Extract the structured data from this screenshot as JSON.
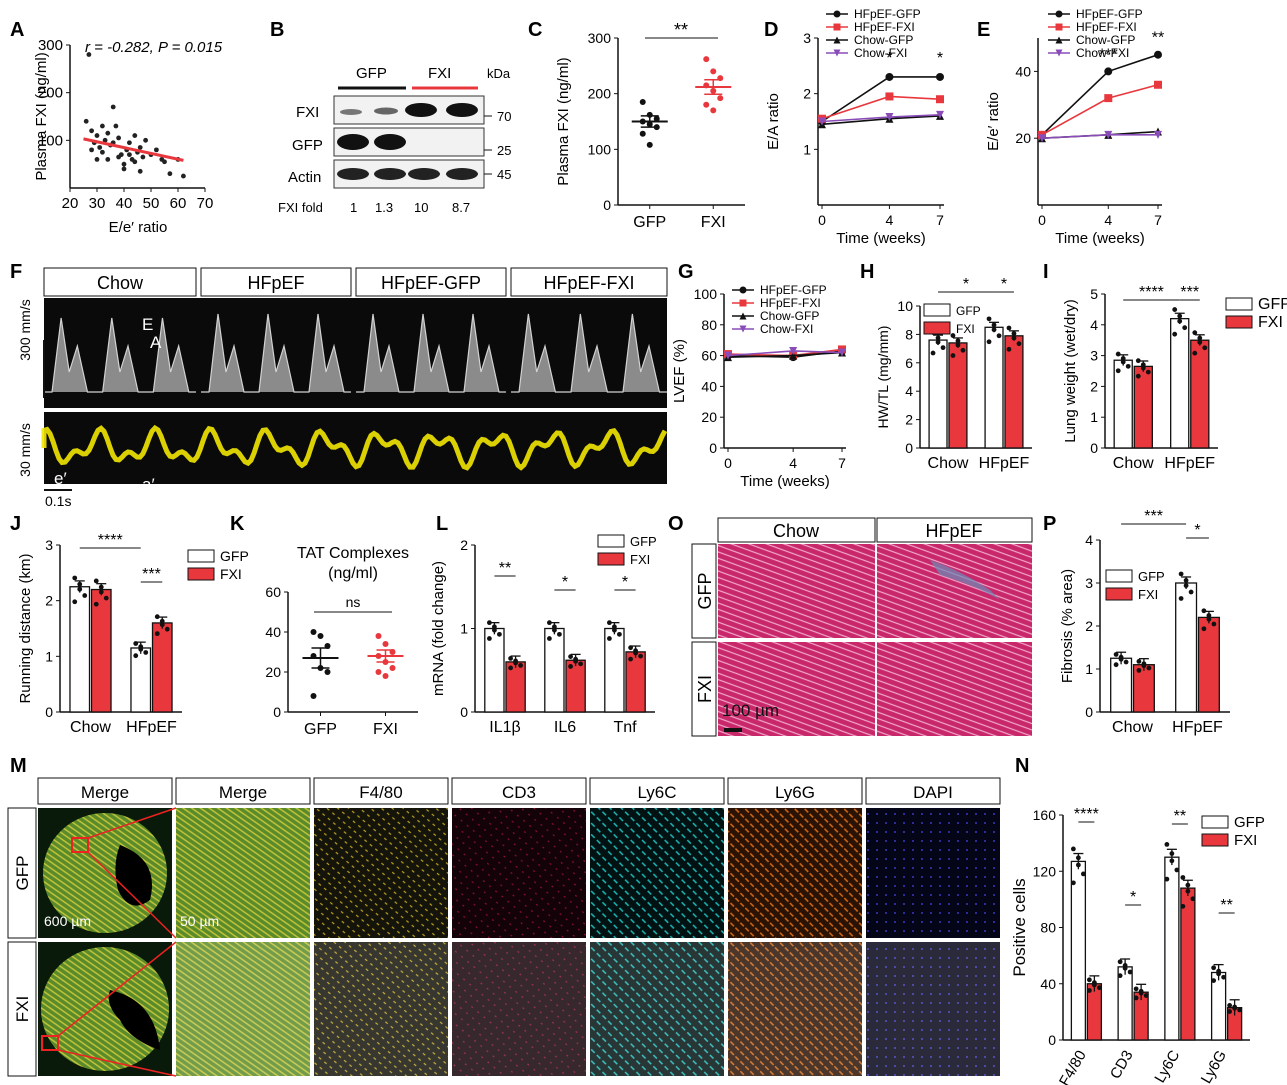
{
  "panels": {
    "A": {
      "letter": "A",
      "stats": "r = -0.282, P = 0.015",
      "xlabel": "E/e′ ratio",
      "ylabel": "Plasma FXI (ng/ml)",
      "xticks": [
        "20",
        "30",
        "40",
        "50",
        "60",
        "70"
      ],
      "yticks": [
        "100",
        "200",
        "300"
      ]
    },
    "B": {
      "letter": "B",
      "groups": [
        "GFP",
        "FXI"
      ],
      "rows": [
        "FXI",
        "GFP",
        "Actin"
      ],
      "kda_label": "kDa",
      "kda": [
        "70",
        "25",
        "45"
      ],
      "fold_label": "FXI fold",
      "fold": [
        "1",
        "1.3",
        "10",
        "8.7"
      ]
    },
    "C": {
      "letter": "C",
      "ylabel": "Plasma FXI (ng/ml)",
      "yticks": [
        "0",
        "100",
        "200",
        "300"
      ],
      "categories": [
        "GFP",
        "FXI"
      ],
      "sig": "**"
    },
    "D": {
      "letter": "D",
      "ylabel": "E/A ratio",
      "xlabel": "Time (weeks)",
      "yticks": [
        "1",
        "2",
        "3"
      ],
      "xticks": [
        "0",
        "4",
        "7"
      ],
      "legend": [
        "HFpEF-GFP",
        "HFpEF-FXI",
        "Chow-GFP",
        "Chow-FXI"
      ],
      "sig": [
        "*",
        "*"
      ]
    },
    "E": {
      "letter": "E",
      "ylabel": "E/e′ ratio",
      "xlabel": "Time (weeks)",
      "yticks": [
        "20",
        "40"
      ],
      "xticks": [
        "0",
        "4",
        "7"
      ],
      "legend": [
        "HFpEF-GFP",
        "HFpEF-FXI",
        "Chow-GFP",
        "Chow-FXI"
      ],
      "sig": [
        "***",
        "**"
      ]
    },
    "F": {
      "letter": "F",
      "conditions": [
        "Chow",
        "HFpEF",
        "HFpEF-GFP",
        "HFpEF-FXI"
      ],
      "scale1": "300 mm/s",
      "scale2": "30 mm/s",
      "time_scale": "0.1s",
      "labels": [
        "E",
        "A",
        "e′",
        "a′"
      ]
    },
    "G": {
      "letter": "G",
      "ylabel": "LVEF (%)",
      "xlabel": "Time (weeks)",
      "yticks": [
        "0",
        "20",
        "40",
        "60",
        "80",
        "100"
      ],
      "xticks": [
        "0",
        "4",
        "7"
      ],
      "legend": [
        "HFpEF-GFP",
        "HFpEF-FXI",
        "Chow-GFP",
        "Chow-FXI"
      ]
    },
    "H": {
      "letter": "H",
      "ylabel": "HW/TL (mg/mm)",
      "yticks": [
        "0",
        "2",
        "4",
        "6",
        "8",
        "10"
      ],
      "categories": [
        "Chow",
        "HFpEF"
      ],
      "legend": [
        "GFP",
        "FXI"
      ],
      "sig": [
        "*",
        "*"
      ]
    },
    "I": {
      "letter": "I",
      "ylabel": "Lung weight (wet/dry)",
      "yticks": [
        "0",
        "1",
        "2",
        "3",
        "4",
        "5"
      ],
      "categories": [
        "Chow",
        "HFpEF"
      ],
      "legend": [
        "GFP",
        "FXI"
      ],
      "sig": [
        "****",
        "***"
      ]
    },
    "J": {
      "letter": "J",
      "ylabel": "Running distance (km)",
      "yticks": [
        "0",
        "1",
        "2",
        "3"
      ],
      "categories": [
        "Chow",
        "HFpEF"
      ],
      "legend": [
        "GFP",
        "FXI"
      ],
      "sig": [
        "****",
        "***"
      ]
    },
    "K": {
      "letter": "K",
      "title": "TAT Complexes",
      "subtitle": "(ng/ml)",
      "yticks": [
        "0",
        "20",
        "40",
        "60"
      ],
      "categories": [
        "GFP",
        "FXI"
      ],
      "sig": "ns"
    },
    "L": {
      "letter": "L",
      "ylabel": "mRNA (fold change)",
      "yticks": [
        "0",
        "1",
        "2"
      ],
      "categories": [
        "IL1β",
        "IL6",
        "Tnf"
      ],
      "legend": [
        "GFP",
        "FXI"
      ],
      "sig": [
        "**",
        "*",
        "*"
      ]
    },
    "O": {
      "letter": "O",
      "columns": [
        "Chow",
        "HFpEF"
      ],
      "rows": [
        "GFP",
        "FXI"
      ],
      "scale": "100 µm"
    },
    "P": {
      "letter": "P",
      "ylabel": "Fibrosis (% area)",
      "yticks": [
        "0",
        "1",
        "2",
        "3",
        "4"
      ],
      "categories": [
        "Chow",
        "HFpEF"
      ],
      "legend": [
        "GFP",
        "FXI"
      ],
      "sig": [
        "***",
        "*"
      ]
    },
    "M": {
      "letter": "M",
      "columns": [
        "Merge",
        "Merge",
        "F4/80",
        "CD3",
        "Ly6C",
        "Ly6G",
        "DAPI"
      ],
      "rows": [
        "GFP",
        "FXI"
      ],
      "scale1": "600 µm",
      "scale2": "50 µm"
    },
    "N": {
      "letter": "N",
      "ylabel": "Positive cells",
      "yticks": [
        "0",
        "40",
        "80",
        "120",
        "160"
      ],
      "categories": [
        "F4/80",
        "CD3",
        "Ly6C",
        "Ly6G"
      ],
      "legend": [
        "GFP",
        "FXI"
      ],
      "sig": [
        "****",
        "*",
        "**",
        "**"
      ]
    }
  },
  "colors": {
    "gfp": "#111111",
    "fxi": "#e8383d",
    "chow_fxi": "#8a4db8",
    "bar_gfp": "#ffffff",
    "bar_fxi": "#e8383d",
    "yellow": "#f2e600"
  },
  "chart_data": [
    {
      "type": "scatter",
      "id": "A",
      "xlabel": "E/e′ ratio",
      "ylabel": "Plasma FXI (ng/ml)",
      "xlim": [
        20,
        70
      ],
      "ylim": [
        0,
        300
      ],
      "points": [
        [
          27,
          280
        ],
        [
          28,
          120
        ],
        [
          29,
          95
        ],
        [
          30,
          110
        ],
        [
          31,
          85
        ],
        [
          32,
          75
        ],
        [
          33,
          100
        ],
        [
          34,
          60
        ],
        [
          35,
          90
        ],
        [
          36,
          170
        ],
        [
          37,
          130
        ],
        [
          38,
          105
        ],
        [
          39,
          70
        ],
        [
          40,
          50
        ],
        [
          41,
          80
        ],
        [
          42,
          95
        ],
        [
          43,
          60
        ],
        [
          44,
          110
        ],
        [
          45,
          75
        ],
        [
          46,
          85
        ],
        [
          47,
          65
        ],
        [
          48,
          100
        ],
        [
          50,
          70
        ],
        [
          52,
          80
        ],
        [
          54,
          60
        ],
        [
          55,
          55
        ],
        [
          57,
          30
        ],
        [
          60,
          60
        ],
        [
          62,
          25
        ],
        [
          26,
          140
        ],
        [
          28,
          80
        ],
        [
          30,
          60
        ],
        [
          32,
          130
        ],
        [
          34,
          115
        ],
        [
          36,
          95
        ],
        [
          38,
          65
        ],
        [
          40,
          40
        ],
        [
          42,
          70
        ],
        [
          44,
          55
        ],
        [
          46,
          35
        ]
      ],
      "fit": [
        [
          25,
          103
        ],
        [
          62,
          58
        ]
      ]
    },
    {
      "type": "scatter",
      "id": "C",
      "categories": [
        "GFP",
        "FXI"
      ],
      "means": [
        150,
        212
      ],
      "sem": [
        10,
        13
      ],
      "points": {
        "GFP": [
          185,
          162,
          155,
          150,
          145,
          140,
          128,
          108
        ],
        "FXI": [
          262,
          240,
          228,
          215,
          205,
          192,
          180,
          170
        ]
      }
    },
    {
      "type": "line",
      "id": "D",
      "x": [
        0,
        4,
        7
      ],
      "ylim": [
        0,
        3
      ],
      "series": [
        {
          "name": "HFpEF-GFP",
          "values": [
            1.5,
            2.3,
            2.3
          ]
        },
        {
          "name": "HFpEF-FXI",
          "values": [
            1.55,
            1.95,
            1.9
          ]
        },
        {
          "name": "Chow-GFP",
          "values": [
            1.45,
            1.55,
            1.6
          ]
        },
        {
          "name": "Chow-FXI",
          "values": [
            1.5,
            1.58,
            1.62
          ]
        }
      ]
    },
    {
      "type": "line",
      "id": "E",
      "x": [
        0,
        4,
        7
      ],
      "ylim": [
        0,
        50
      ],
      "series": [
        {
          "name": "HFpEF-GFP",
          "values": [
            21,
            40,
            45
          ]
        },
        {
          "name": "HFpEF-FXI",
          "values": [
            21,
            32,
            36
          ]
        },
        {
          "name": "Chow-GFP",
          "values": [
            20,
            21,
            22
          ]
        },
        {
          "name": "Chow-FXI",
          "values": [
            20,
            21,
            21
          ]
        }
      ]
    },
    {
      "type": "line",
      "id": "G",
      "x": [
        0,
        4,
        7
      ],
      "ylim": [
        0,
        100
      ],
      "series": [
        {
          "name": "HFpEF-GFP",
          "values": [
            60,
            59,
            63
          ]
        },
        {
          "name": "HFpEF-FXI",
          "values": [
            61,
            60,
            64
          ]
        },
        {
          "name": "Chow-GFP",
          "values": [
            59,
            60,
            62
          ]
        },
        {
          "name": "Chow-FXI",
          "values": [
            60,
            63,
            62
          ]
        }
      ]
    },
    {
      "type": "bar",
      "id": "H",
      "categories": [
        "Chow",
        "HFpEF"
      ],
      "ylim": [
        0,
        10
      ],
      "series": [
        {
          "name": "GFP",
          "values": [
            7.6,
            8.5
          ]
        },
        {
          "name": "FXI",
          "values": [
            7.4,
            7.9
          ]
        }
      ]
    },
    {
      "type": "bar",
      "id": "I",
      "categories": [
        "Chow",
        "HFpEF"
      ],
      "ylim": [
        0,
        5
      ],
      "series": [
        {
          "name": "GFP",
          "values": [
            2.85,
            4.2
          ]
        },
        {
          "name": "FXI",
          "values": [
            2.65,
            3.5
          ]
        }
      ]
    },
    {
      "type": "bar",
      "id": "J",
      "categories": [
        "Chow",
        "HFpEF"
      ],
      "ylim": [
        0,
        3
      ],
      "series": [
        {
          "name": "GFP",
          "values": [
            2.25,
            1.15
          ]
        },
        {
          "name": "FXI",
          "values": [
            2.2,
            1.6
          ]
        }
      ]
    },
    {
      "type": "scatter",
      "id": "K",
      "categories": [
        "GFP",
        "FXI"
      ],
      "means": [
        27,
        28
      ],
      "sem": [
        5,
        3
      ],
      "ylim": [
        0,
        60
      ],
      "points": {
        "GFP": [
          40,
          38,
          33,
          28,
          22,
          20,
          8
        ],
        "FXI": [
          38,
          34,
          30,
          28,
          25,
          22,
          20,
          18
        ]
      }
    },
    {
      "type": "bar",
      "id": "L",
      "categories": [
        "IL1β",
        "IL6",
        "Tnf"
      ],
      "ylim": [
        0,
        2
      ],
      "series": [
        {
          "name": "GFP",
          "values": [
            1.0,
            1.0,
            1.0
          ]
        },
        {
          "name": "FXI",
          "values": [
            0.6,
            0.62,
            0.72
          ]
        }
      ]
    },
    {
      "type": "bar",
      "id": "P",
      "categories": [
        "Chow",
        "HFpEF"
      ],
      "ylim": [
        0,
        4
      ],
      "series": [
        {
          "name": "GFP",
          "values": [
            1.25,
            3.0
          ]
        },
        {
          "name": "FXI",
          "values": [
            1.1,
            2.2
          ]
        }
      ]
    },
    {
      "type": "bar",
      "id": "N",
      "categories": [
        "F4/80",
        "CD3",
        "Ly6C",
        "Ly6G"
      ],
      "ylim": [
        0,
        160
      ],
      "series": [
        {
          "name": "GFP",
          "values": [
            127,
            52,
            130,
            48
          ]
        },
        {
          "name": "FXI",
          "values": [
            40,
            34,
            108,
            23
          ]
        }
      ]
    }
  ]
}
